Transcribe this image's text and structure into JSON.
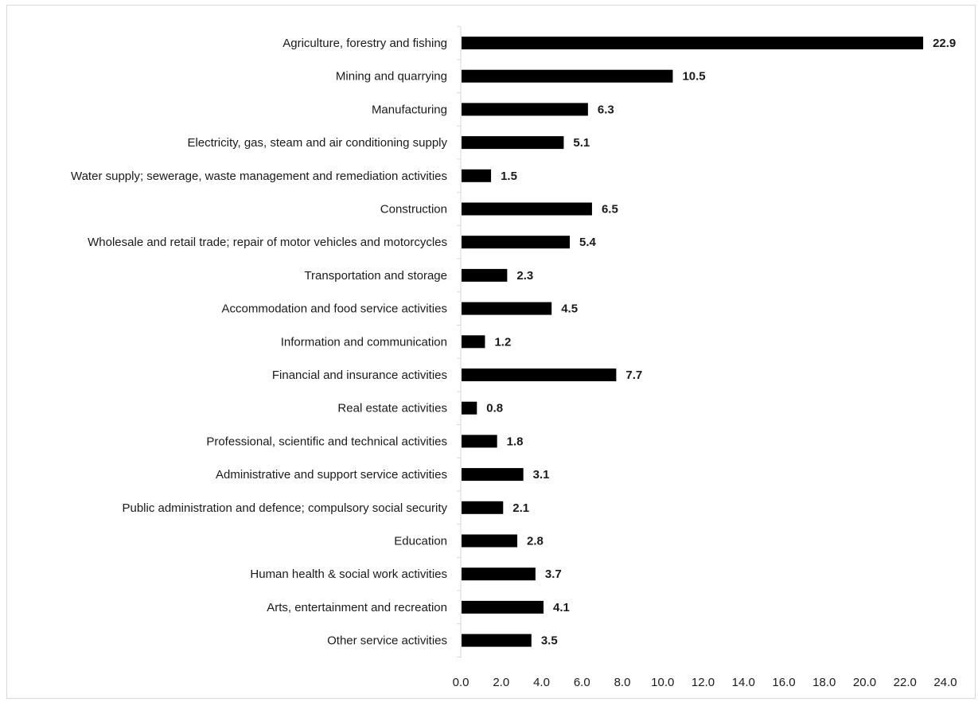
{
  "chart_data": {
    "type": "bar",
    "orientation": "horizontal",
    "title": "",
    "xlabel": "",
    "ylabel": "",
    "categories": [
      "Agriculture, forestry and fishing",
      "Mining and quarrying",
      "Manufacturing",
      "Electricity, gas, steam and air conditioning supply",
      "Water supply; sewerage, waste management and remediation activities",
      "Construction",
      "Wholesale and retail trade; repair of motor vehicles and motorcycles",
      "Transportation and storage",
      "Accommodation and food service activities",
      "Information and communication",
      "Financial and insurance activities",
      "Real estate activities",
      "Professional, scientific and technical activities",
      "Administrative and support service activities",
      "Public administration and defence; compulsory social security",
      "Education",
      "Human health & social work activities",
      "Arts, entertainment and recreation",
      "Other service activities"
    ],
    "values": [
      22.9,
      10.5,
      6.3,
      5.1,
      1.5,
      6.5,
      5.4,
      2.3,
      4.5,
      1.2,
      7.7,
      0.8,
      1.8,
      3.1,
      2.1,
      2.8,
      3.7,
      4.1,
      3.5
    ],
    "data_labels": [
      "22.9",
      "10.5",
      "6.3",
      "5.1",
      "1.5",
      "6.5",
      "5.4",
      "2.3",
      "4.5",
      "1.2",
      "7.7",
      "0.8",
      "1.8",
      "3.1",
      "2.1",
      "2.8",
      "3.7",
      "4.1",
      "3.5"
    ],
    "xlim": [
      0,
      24
    ],
    "x_ticks": [
      "0.0",
      "2.0",
      "4.0",
      "6.0",
      "8.0",
      "10.0",
      "12.0",
      "14.0",
      "16.0",
      "18.0",
      "20.0",
      "22.0",
      "24.0"
    ],
    "grid": false,
    "legend": "none",
    "bar_color": "#000000"
  }
}
